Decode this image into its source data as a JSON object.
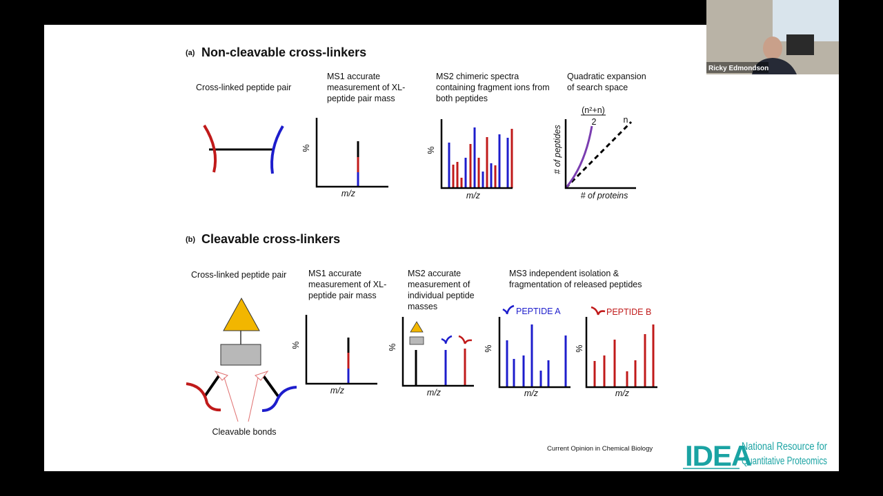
{
  "slide": {
    "section_a": {
      "tag": "(a)",
      "title": "Non-cleavable cross-linkers",
      "panels": [
        {
          "caption": [
            "Cross-linked peptide pair"
          ]
        },
        {
          "caption": [
            "MS1 accurate",
            "measurement of XL-",
            "peptide pair mass"
          ],
          "y_label": "%",
          "x_label": "m/z"
        },
        {
          "caption": [
            "MS2 chimeric spectra",
            "containing fragment ions from",
            "both peptides"
          ],
          "y_label": "%",
          "x_label": "m/z"
        },
        {
          "caption": [
            "Quadratic expansion",
            "of search space"
          ],
          "y_label": "# of peptides",
          "x_label": "# of proteins",
          "curve_label_top": "(n²+n)",
          "curve_label_bottom": "2",
          "line_label": "n"
        }
      ]
    },
    "section_b": {
      "tag": "(b)",
      "title": "Cleavable cross-linkers",
      "panels": [
        {
          "caption": [
            "Cross-linked peptide pair"
          ],
          "note": "Cleavable bonds"
        },
        {
          "caption": [
            "MS1 accurate",
            "measurement of XL-",
            "peptide pair mass"
          ],
          "y_label": "%",
          "x_label": "m/z"
        },
        {
          "caption": [
            "MS2 accurate",
            "measurement of",
            "individual peptide",
            "masses"
          ],
          "y_label": "%",
          "x_label": "m/z"
        },
        {
          "caption": [
            "MS3 independent isolation &",
            "fragmentation of released peptides"
          ],
          "peptide_a": "PEPTIDE A",
          "peptide_b": "PEPTIDE B",
          "y_label_a": "%",
          "x_label_a": "m/z",
          "y_label_b": "%",
          "x_label_b": "m/z"
        }
      ]
    },
    "citation": "Current Opinion in Chemical Biology",
    "logo": {
      "mark": "IDEA",
      "lines": [
        "National Resource for",
        "Quantitative Proteomics"
      ]
    }
  },
  "video": {
    "participant": "Ricky Edmondson"
  }
}
